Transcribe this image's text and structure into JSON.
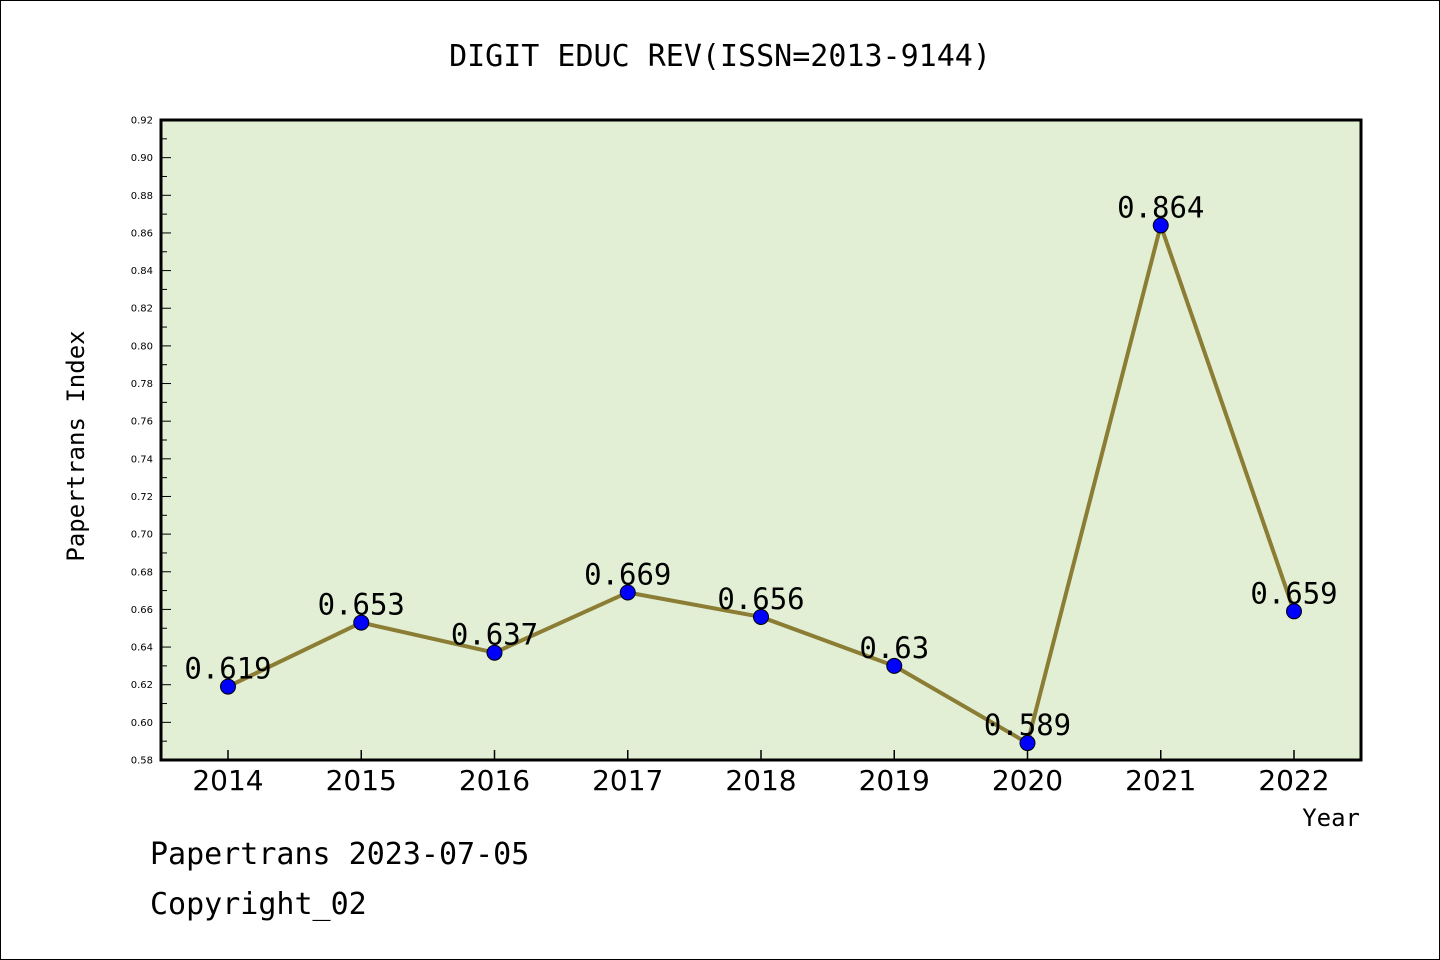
{
  "chart_data": {
    "type": "line",
    "title": "DIGIT EDUC REV(ISSN=2013-9144)",
    "xlabel": "Year",
    "ylabel": "Papertrans Index",
    "categories": [
      "2014",
      "2015",
      "2016",
      "2017",
      "2018",
      "2019",
      "2020",
      "2021",
      "2022"
    ],
    "series": [
      {
        "values": [
          0.619,
          0.653,
          0.637,
          0.669,
          0.656,
          0.63,
          0.589,
          0.864,
          0.659
        ],
        "labels": [
          "0.619",
          "0.653",
          "0.637",
          "0.669",
          "0.656",
          "0.63",
          "0.589",
          "0.864",
          "0.659"
        ]
      }
    ],
    "ylim": [
      0.58,
      0.92
    ],
    "yticks": [
      "0.58",
      "0.60",
      "0.62",
      "0.64",
      "0.66",
      "0.68",
      "0.70",
      "0.72",
      "0.74",
      "0.76",
      "0.78",
      "0.80",
      "0.82",
      "0.84",
      "0.86",
      "0.88",
      "0.90",
      "0.92"
    ],
    "grid": false,
    "colors": {
      "plot_background": "#e2efd5",
      "line": "#8b7d33",
      "marker": "#0000ff"
    }
  },
  "footer": {
    "date_line": "Papertrans 2023-07-05",
    "copyright": "Copyright_02"
  }
}
